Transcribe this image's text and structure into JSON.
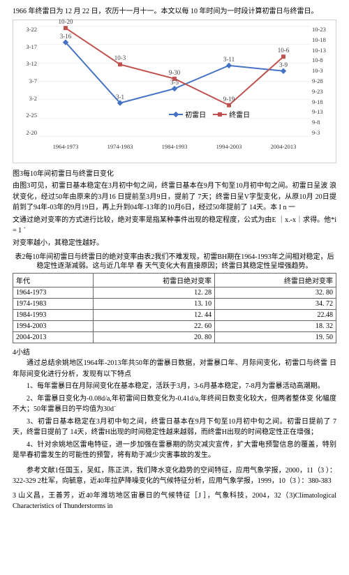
{
  "intro": "1966 年终雷日为 12 月 22 日，农历十一月十一。本文以每 10 年时间为一时段计算初雷日与终雷日。",
  "chart": {
    "type": "line",
    "background_color": "#ffffff",
    "grid_color": "#f0f0f0",
    "categories": [
      "1964-1973",
      "1974-1983",
      "1984-1993",
      "1994-2003",
      "2004-2013"
    ],
    "y_left_ticks": [
      "3-22",
      "3-17",
      "3-12",
      "3-7",
      "3-2",
      "2-25",
      "2-20"
    ],
    "y_right_ticks": [
      "10-23",
      "10-18",
      "10-13",
      "10-8",
      "10-3",
      "9-28",
      "9-23",
      "9-18",
      "9-13",
      "9-8",
      "9-3"
    ],
    "series": [
      {
        "name": "初雷日",
        "color": "#4472c4",
        "marker": "diamond",
        "line_width": 2,
        "points": [
          {
            "y_frac": 0.15,
            "label": "3-16"
          },
          {
            "y_frac": 0.7,
            "label": "3-1"
          },
          {
            "y_frac": 0.57,
            "label": "3-5"
          },
          {
            "y_frac": 0.36,
            "label": "3-11"
          },
          {
            "y_frac": 0.41,
            "label": "3-9"
          }
        ]
      },
      {
        "name": "终雷日",
        "color": "#c0504d",
        "marker": "square",
        "line_width": 2,
        "points": [
          {
            "y_frac": 0.02,
            "label": "10-20"
          },
          {
            "y_frac": 0.35,
            "label": "10-3"
          },
          {
            "y_frac": 0.48,
            "label": "9-30"
          },
          {
            "y_frac": 0.72,
            "label": "9-19"
          },
          {
            "y_frac": 0.28,
            "label": "10-6"
          }
        ]
      }
    ],
    "legend_labels": {
      "blue": "初雷日",
      "red": "终雷日"
    },
    "font_size": 9
  },
  "fig_caption": "图3每10年间初雷日与终雷日变化",
  "para1": "由图3可见，初雷日基本稳定在3月初中旬之间，终雷日基本在9月下旬至10月初中旬之间。初雷日呈波 浪状变化，经过50年由原来的3月16 日提前至3月9日，提前了 7天；终雷日呈V字型变化，从原10月 20日提前到了94年-03年的9月19日，再上升到04年-13年的10月6日，经过50年提前了 14天。本 I n 一",
  "para2": "文通过绝对变率的方式进行比较，绝对变率是指某种事件出现的稳定程度，公式为由Ε ｜x.-x｜求得。他*i = 1 ˙",
  "para3": "对变率越小，其稳定性越好。",
  "table": {
    "title": "表2每10年间初雷日与终雷日的绝对变率由表2我们不难发现，初雷BH期在1964-1993年之间相对稳定，后稳定性逐渐减弱。这与近几年早 春 天气变化大有直接原因；终雷日其稳定性呈增强趋势。",
    "columns": [
      "年代",
      "初雷日绝对变率",
      "终雷日绝对变率"
    ],
    "rows": [
      [
        "1964-1973",
        "12. 28",
        "32. 80"
      ],
      [
        "1974-1983",
        "13. 10",
        "34. 72"
      ],
      [
        "1984-1993",
        "12. 44",
        "22.48"
      ],
      [
        "1994-2003",
        "22. 60",
        "18. 32"
      ],
      [
        "2004-2013",
        "20. 80",
        "19. 50"
      ]
    ]
  },
  "sect4": "4小结",
  "sum_intro": "通过总结余姚地区1964年-2013年共50年的雷暴日数据，对雷暴口年、月际间变化，初雷口与终雷 日年际间变化进行分析，发现有以下特点",
  "li1": "1、每年雷暴日在月际间变化在基本稳定，活跃于3月，3-6月基本稳定，7-8月为雷暴活动高潮期。",
  "li2": "2、年雷暴日变化为-0.08d/a,年初雷间日数变化为-0.41d/a,年终间日数变化较大，但两者整体变 化幅度不大；50年雷暴日的平均值为30d˙",
  "li3": "3、初雷日基本稳定在3月初中旬之间，终雷日基本在9月下旬至10月初中旬之间。初雷日提前了 7 天，终雷日提前了 14天，终雷H出现的时间稳定性越来越弱，而终雷H出现的时间稳定性正在增强；",
  "li4": "4、针对余姚地区雷电特征，进一步加强在雷暴期的防灾减灾宣传，扩大雷电预警信息的覆盖，特别是早春初雷发生的可能性的预警，将有助于减少灾害事故的发生。",
  "refs": "参考文献1任国玉，吴虹，陈正洪，我们降水变化趋势的空间特征，应用气象学报，2000，11（3 ）：322-329 2杜军，向毓意，近40年拉萨降噪变化的气候特征分析，应用气象学报，1999，10（3 ）：380-383",
  "ref3": "3 山义昌，王善芳，近40年潍坊地区宙暴日的气候特征［J ］，气象科技，2004，32（3)Climatological Characteristics of Thunderstorms in"
}
